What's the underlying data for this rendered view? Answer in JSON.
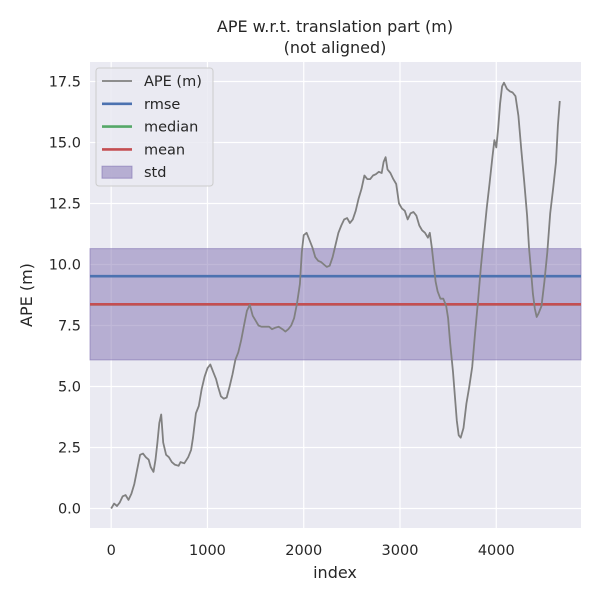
{
  "chart_data": {
    "type": "line",
    "title": "APE w.r.t. translation part (m)",
    "subtitle": "(not aligned)",
    "xlabel": "index",
    "ylabel": "APE (m)",
    "xlim": [
      -220,
      4880
    ],
    "ylim": [
      -0.8,
      18.3
    ],
    "xticks": [
      0,
      1000,
      2000,
      3000,
      4000
    ],
    "yticks": [
      0.0,
      2.5,
      5.0,
      7.5,
      10.0,
      12.5,
      15.0,
      17.5
    ],
    "xtick_labels": [
      "0",
      "1000",
      "2000",
      "3000",
      "4000"
    ],
    "ytick_labels": [
      "0.0",
      "2.5",
      "5.0",
      "7.5",
      "10.0",
      "12.5",
      "15.0",
      "17.5"
    ],
    "grid": true,
    "background": "#eaeaf2",
    "legend_position": "upper left",
    "stats": {
      "rmse": 9.52,
      "median": 8.37,
      "mean": 8.37,
      "std": 2.28
    },
    "std_band": [
      6.09,
      10.65
    ],
    "series": [
      {
        "name": "APE (m)",
        "color": "#808080",
        "points": [
          [
            0,
            0.0
          ],
          [
            30,
            0.2
          ],
          [
            60,
            0.1
          ],
          [
            90,
            0.25
          ],
          [
            120,
            0.5
          ],
          [
            150,
            0.55
          ],
          [
            180,
            0.35
          ],
          [
            210,
            0.6
          ],
          [
            240,
            1.0
          ],
          [
            270,
            1.6
          ],
          [
            300,
            2.2
          ],
          [
            330,
            2.25
          ],
          [
            360,
            2.1
          ],
          [
            390,
            2.0
          ],
          [
            410,
            1.7
          ],
          [
            440,
            1.5
          ],
          [
            460,
            2.0
          ],
          [
            480,
            2.7
          ],
          [
            500,
            3.5
          ],
          [
            520,
            3.85
          ],
          [
            540,
            2.7
          ],
          [
            570,
            2.2
          ],
          [
            600,
            2.1
          ],
          [
            630,
            1.9
          ],
          [
            660,
            1.8
          ],
          [
            700,
            1.75
          ],
          [
            720,
            1.9
          ],
          [
            760,
            1.85
          ],
          [
            800,
            2.1
          ],
          [
            830,
            2.4
          ],
          [
            850,
            2.9
          ],
          [
            880,
            3.9
          ],
          [
            910,
            4.2
          ],
          [
            940,
            4.9
          ],
          [
            970,
            5.4
          ],
          [
            1000,
            5.75
          ],
          [
            1030,
            5.9
          ],
          [
            1060,
            5.6
          ],
          [
            1090,
            5.3
          ],
          [
            1110,
            5.0
          ],
          [
            1140,
            4.6
          ],
          [
            1170,
            4.5
          ],
          [
            1200,
            4.55
          ],
          [
            1230,
            5.0
          ],
          [
            1260,
            5.5
          ],
          [
            1290,
            6.1
          ],
          [
            1320,
            6.4
          ],
          [
            1350,
            6.9
          ],
          [
            1380,
            7.5
          ],
          [
            1410,
            8.1
          ],
          [
            1440,
            8.35
          ],
          [
            1470,
            7.9
          ],
          [
            1500,
            7.7
          ],
          [
            1530,
            7.5
          ],
          [
            1560,
            7.45
          ],
          [
            1600,
            7.45
          ],
          [
            1640,
            7.45
          ],
          [
            1670,
            7.35
          ],
          [
            1700,
            7.4
          ],
          [
            1740,
            7.45
          ],
          [
            1780,
            7.35
          ],
          [
            1810,
            7.25
          ],
          [
            1840,
            7.35
          ],
          [
            1870,
            7.5
          ],
          [
            1900,
            7.8
          ],
          [
            1930,
            8.4
          ],
          [
            1960,
            9.2
          ],
          [
            1980,
            10.5
          ],
          [
            2000,
            11.2
          ],
          [
            2030,
            11.3
          ],
          [
            2060,
            11.0
          ],
          [
            2090,
            10.7
          ],
          [
            2120,
            10.3
          ],
          [
            2150,
            10.15
          ],
          [
            2180,
            10.1
          ],
          [
            2210,
            10.0
          ],
          [
            2240,
            9.9
          ],
          [
            2270,
            9.95
          ],
          [
            2300,
            10.3
          ],
          [
            2330,
            10.8
          ],
          [
            2360,
            11.3
          ],
          [
            2390,
            11.6
          ],
          [
            2420,
            11.85
          ],
          [
            2450,
            11.9
          ],
          [
            2480,
            11.7
          ],
          [
            2510,
            11.85
          ],
          [
            2540,
            12.2
          ],
          [
            2570,
            12.7
          ],
          [
            2600,
            13.1
          ],
          [
            2630,
            13.65
          ],
          [
            2660,
            13.5
          ],
          [
            2690,
            13.5
          ],
          [
            2720,
            13.65
          ],
          [
            2750,
            13.7
          ],
          [
            2780,
            13.8
          ],
          [
            2810,
            13.75
          ],
          [
            2830,
            14.2
          ],
          [
            2850,
            14.4
          ],
          [
            2870,
            13.9
          ],
          [
            2900,
            13.75
          ],
          [
            2930,
            13.5
          ],
          [
            2960,
            13.3
          ],
          [
            2990,
            12.5
          ],
          [
            3020,
            12.3
          ],
          [
            3050,
            12.2
          ],
          [
            3080,
            11.85
          ],
          [
            3110,
            12.1
          ],
          [
            3140,
            12.15
          ],
          [
            3170,
            12.0
          ],
          [
            3200,
            11.6
          ],
          [
            3230,
            11.4
          ],
          [
            3260,
            11.3
          ],
          [
            3290,
            11.1
          ],
          [
            3310,
            11.3
          ],
          [
            3330,
            10.7
          ],
          [
            3350,
            10.0
          ],
          [
            3370,
            9.3
          ],
          [
            3390,
            8.9
          ],
          [
            3420,
            8.6
          ],
          [
            3450,
            8.6
          ],
          [
            3480,
            8.3
          ],
          [
            3500,
            7.8
          ],
          [
            3520,
            6.8
          ],
          [
            3550,
            5.6
          ],
          [
            3570,
            4.6
          ],
          [
            3590,
            3.6
          ],
          [
            3610,
            3.0
          ],
          [
            3630,
            2.9
          ],
          [
            3660,
            3.3
          ],
          [
            3690,
            4.3
          ],
          [
            3720,
            5.0
          ],
          [
            3750,
            5.8
          ],
          [
            3780,
            7.2
          ],
          [
            3810,
            8.5
          ],
          [
            3840,
            9.9
          ],
          [
            3870,
            11.1
          ],
          [
            3900,
            12.3
          ],
          [
            3930,
            13.3
          ],
          [
            3960,
            14.4
          ],
          [
            3980,
            15.1
          ],
          [
            4000,
            14.8
          ],
          [
            4020,
            15.6
          ],
          [
            4040,
            16.6
          ],
          [
            4060,
            17.3
          ],
          [
            4080,
            17.45
          ],
          [
            4110,
            17.2
          ],
          [
            4140,
            17.1
          ],
          [
            4170,
            17.05
          ],
          [
            4200,
            16.9
          ],
          [
            4230,
            16.1
          ],
          [
            4260,
            14.7
          ],
          [
            4290,
            13.4
          ],
          [
            4320,
            12.0
          ],
          [
            4340,
            10.7
          ],
          [
            4360,
            9.8
          ],
          [
            4380,
            8.8
          ],
          [
            4400,
            8.2
          ],
          [
            4420,
            7.85
          ],
          [
            4440,
            8.0
          ],
          [
            4470,
            8.3
          ],
          [
            4500,
            9.3
          ],
          [
            4530,
            10.5
          ],
          [
            4560,
            12.1
          ],
          [
            4590,
            13.1
          ],
          [
            4620,
            14.2
          ],
          [
            4640,
            15.7
          ],
          [
            4660,
            16.7
          ]
        ]
      },
      {
        "name": "rmse",
        "color": "#4c72b0",
        "value": 9.52
      },
      {
        "name": "median",
        "color": "#55a868",
        "value": 8.37
      },
      {
        "name": "mean",
        "color": "#c44e52",
        "value": 8.37
      },
      {
        "name": "std",
        "color": "#8172b2",
        "range": [
          6.09,
          10.65
        ]
      }
    ]
  }
}
